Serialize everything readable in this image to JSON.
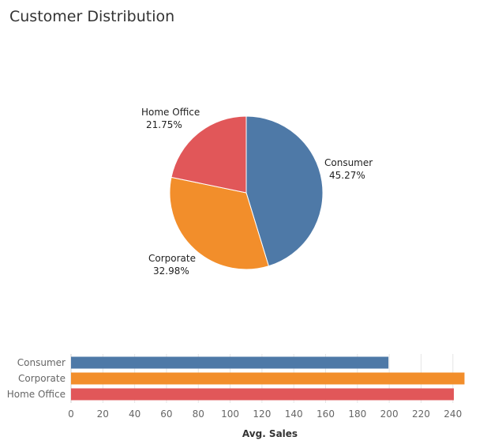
{
  "title": "Customer Distribution",
  "colors": {
    "consumer": "#4e79a7",
    "corporate": "#f28e2b",
    "home_office": "#e15759"
  },
  "chart_data": [
    {
      "type": "pie",
      "slices": [
        {
          "label": "Consumer",
          "value": 45.27,
          "value_label": "45.27%",
          "color": "#4e79a7"
        },
        {
          "label": "Corporate",
          "value": 32.98,
          "value_label": "32.98%",
          "color": "#f28e2b"
        },
        {
          "label": "Home Office",
          "value": 21.75,
          "value_label": "21.75%",
          "color": "#e15759"
        }
      ]
    },
    {
      "type": "bar",
      "orientation": "horizontal",
      "categories": [
        "Consumer",
        "Corporate",
        "Home Office"
      ],
      "values": [
        199.5,
        247.3,
        240.6
      ],
      "colors": [
        "#4e79a7",
        "#f28e2b",
        "#e15759"
      ],
      "xlabel": "Avg. Sales",
      "xlim": [
        0,
        255
      ],
      "xticks": [
        0,
        20,
        40,
        60,
        80,
        100,
        120,
        140,
        160,
        180,
        200,
        220,
        240
      ],
      "grid": true
    }
  ]
}
